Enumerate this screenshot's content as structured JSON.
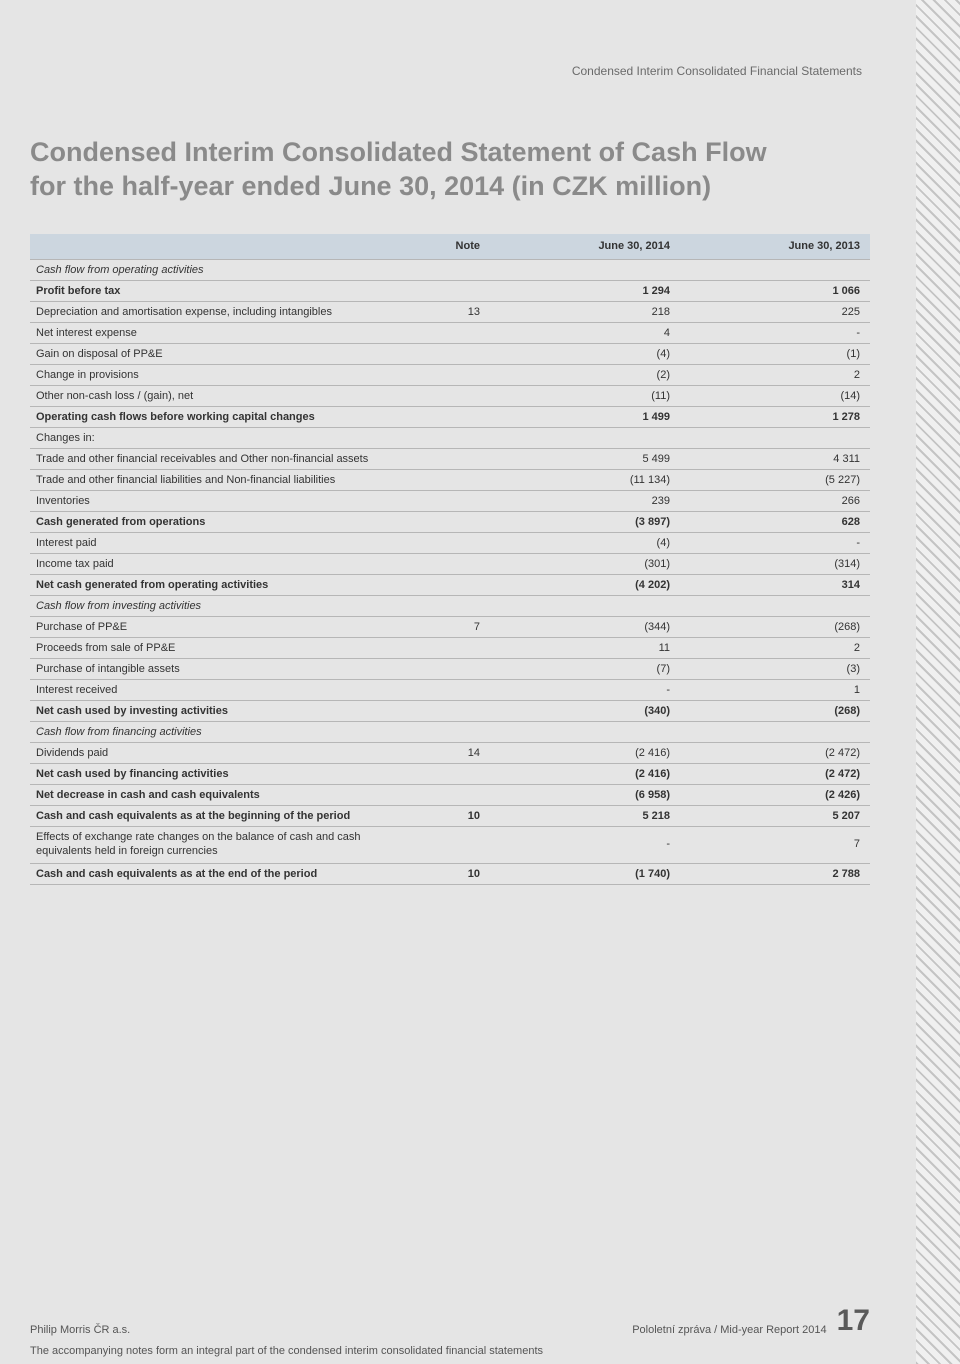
{
  "running_head": "Condensed Interim Consolidated Financial Statements",
  "title_line1": "Condensed Interim Consolidated Statement of Cash Flow",
  "title_line2": "for the half-year ended June 30, 2014 (in CZK million)",
  "table": {
    "headers": {
      "c1": "",
      "note": "Note",
      "v1": "June 30, 2014",
      "v2": "June 30, 2013"
    },
    "header_bg": "#ccd6df",
    "row_border": "#b6b6b6",
    "rows": [
      {
        "type": "section",
        "label": "Cash flow from operating activities"
      },
      {
        "type": "bold",
        "label": "Profit before tax",
        "note": "",
        "v1": "1 294",
        "v2": "1 066"
      },
      {
        "type": "row",
        "label": "Depreciation and amortisation expense, including intangibles",
        "note": "13",
        "v1": "218",
        "v2": "225"
      },
      {
        "type": "row",
        "label": "Net interest expense",
        "note": "",
        "v1": "4",
        "v2": "-"
      },
      {
        "type": "row",
        "label": "Gain on disposal of PP&E",
        "note": "",
        "v1": "(4)",
        "v2": "(1)"
      },
      {
        "type": "row",
        "label": "Change in provisions",
        "note": "",
        "v1": "(2)",
        "v2": "2"
      },
      {
        "type": "row",
        "label": "Other non-cash loss / (gain), net",
        "note": "",
        "v1": "(11)",
        "v2": "(14)"
      },
      {
        "type": "bold",
        "label": "Operating cash flows before working capital changes",
        "note": "",
        "v1": "1 499",
        "v2": "1 278"
      },
      {
        "type": "row",
        "label": "Changes in:",
        "note": "",
        "v1": "",
        "v2": ""
      },
      {
        "type": "row",
        "label": "Trade and other financial receivables and Other non-financial assets",
        "note": "",
        "v1": "5 499",
        "v2": "4 311"
      },
      {
        "type": "row",
        "label": "Trade and other financial liabilities and Non-financial liabilities",
        "note": "",
        "v1": "(11 134)",
        "v2": "(5 227)"
      },
      {
        "type": "row",
        "label": "Inventories",
        "note": "",
        "v1": "239",
        "v2": "266"
      },
      {
        "type": "bold",
        "label": "Cash generated from operations",
        "note": "",
        "v1": "(3 897)",
        "v2": "628"
      },
      {
        "type": "row",
        "label": "Interest paid",
        "note": "",
        "v1": "(4)",
        "v2": "-"
      },
      {
        "type": "row",
        "label": "Income tax paid",
        "note": "",
        "v1": "(301)",
        "v2": "(314)"
      },
      {
        "type": "bold",
        "label": "Net cash generated from operating activities",
        "note": "",
        "v1": "(4 202)",
        "v2": "314"
      },
      {
        "type": "section",
        "label": "Cash flow from investing activities"
      },
      {
        "type": "row",
        "label": "Purchase of PP&E",
        "note": "7",
        "v1": "(344)",
        "v2": "(268)"
      },
      {
        "type": "row",
        "label": "Proceeds from sale of PP&E",
        "note": "",
        "v1": "11",
        "v2": "2"
      },
      {
        "type": "row",
        "label": "Purchase of intangible assets",
        "note": "",
        "v1": "(7)",
        "v2": "(3)"
      },
      {
        "type": "row",
        "label": "Interest received",
        "note": "",
        "v1": "-",
        "v2": "1"
      },
      {
        "type": "bold",
        "label": "Net cash used by investing activities",
        "note": "",
        "v1": "(340)",
        "v2": "(268)"
      },
      {
        "type": "section",
        "label": "Cash flow from financing activities"
      },
      {
        "type": "row",
        "label": "Dividends paid",
        "note": "14",
        "v1": "(2 416)",
        "v2": "(2 472)"
      },
      {
        "type": "bold",
        "label": "Net cash used by financing activities",
        "note": "",
        "v1": "(2 416)",
        "v2": "(2 472)"
      },
      {
        "type": "bold",
        "label": "Net decrease in cash and cash equivalents",
        "note": "",
        "v1": "(6 958)",
        "v2": "(2 426)"
      },
      {
        "type": "bold",
        "label": "Cash and cash equivalents as at the beginning of the period",
        "note": "10",
        "v1": "5 218",
        "v2": "5 207"
      },
      {
        "type": "tall",
        "label": "Effects of exchange rate changes on the balance of cash and cash equivalents held in foreign currencies",
        "note": "",
        "v1": "-",
        "v2": "7"
      },
      {
        "type": "bold",
        "label": "Cash and cash equivalents as at the end of the period",
        "note": "10",
        "v1": "(1 740)",
        "v2": "2 788"
      }
    ]
  },
  "footnote": "The accompanying notes form an integral part of the condensed interim consolidated financial statements",
  "footer": {
    "left": "Philip Morris ČR a.s.",
    "right_text": "Pololetní zpráva / Mid-year Report  2014",
    "page_number": "17"
  },
  "colors": {
    "page_bg": "#e5e5e5",
    "title_color": "#8a8a8a",
    "text": "#333333",
    "muted": "#6a6a6a",
    "hatch_light": "#f0f0f0",
    "hatch_dark": "#c4c4c4"
  }
}
